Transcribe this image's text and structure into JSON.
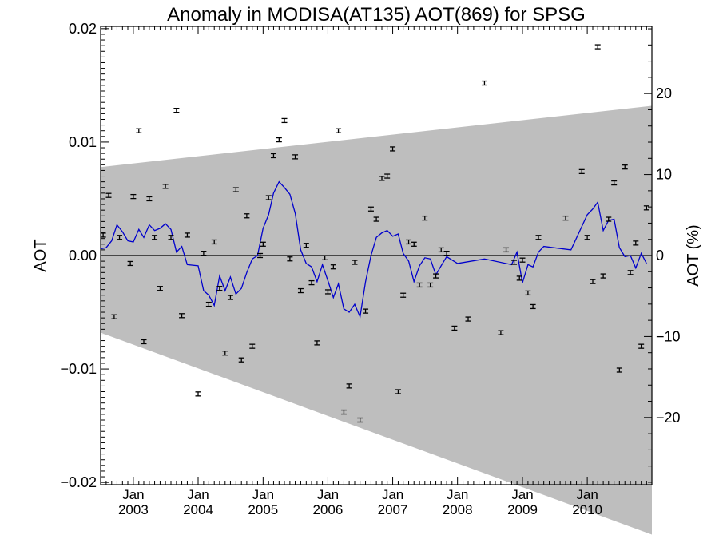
{
  "chart_data": {
    "type": "scatter",
    "title": "Anomaly in MODISA(AT135) AOT(869) for SPSG",
    "ylabel": "AOT",
    "y2label": "AOT (%)",
    "xlabel": "",
    "xlim": [
      "2002-07-01",
      "2010-12-31"
    ],
    "ylim": [
      -0.0202,
      0.0202
    ],
    "y2lim": [
      -28.3,
      28.3
    ],
    "y_ticks": [
      -0.02,
      -0.01,
      0.0,
      0.01,
      0.02
    ],
    "y_tick_labels": [
      "−0.02",
      "−0.01",
      "0.00",
      "0.01",
      "0.02"
    ],
    "y2_ticks": [
      -20,
      -10,
      0,
      10,
      20
    ],
    "y2_tick_labels": [
      "−20",
      "−10",
      "0",
      "10",
      "20"
    ],
    "x_ticks": [
      {
        "date": "2003-01-01",
        "month": "Jan",
        "year": "2003"
      },
      {
        "date": "2004-01-01",
        "month": "Jan",
        "year": "2004"
      },
      {
        "date": "2005-01-01",
        "month": "Jan",
        "year": "2005"
      },
      {
        "date": "2006-01-01",
        "month": "Jan",
        "year": "2006"
      },
      {
        "date": "2007-01-01",
        "month": "Jan",
        "year": "2007"
      },
      {
        "date": "2008-01-01",
        "month": "Jan",
        "year": "2008"
      },
      {
        "date": "2009-01-01",
        "month": "Jan",
        "year": "2009"
      },
      {
        "date": "2010-01-01",
        "month": "Jan",
        "year": "2010"
      }
    ],
    "band": {
      "upper": [
        [
          "2002-07-01",
          0.0078
        ],
        [
          "2010-12-31",
          0.0132
        ]
      ],
      "lower": [
        [
          "2002-07-01",
          -0.0068
        ],
        [
          "2010-12-31",
          -0.0246
        ]
      ],
      "color": "#bebebe"
    },
    "zero_line": true,
    "grid": false,
    "legend": "none",
    "series": [
      {
        "kind": "points",
        "marker": "error-bar",
        "color": "#000000",
        "points": [
          [
            "2002-07-15",
            0.0018
          ],
          [
            "2002-08-15",
            0.0053
          ],
          [
            "2002-09-15",
            -0.0054
          ],
          [
            "2002-10-15",
            0.0016
          ],
          [
            "2002-12-15",
            -0.0007
          ],
          [
            "2003-01-01",
            0.0052
          ],
          [
            "2003-02-01",
            0.011
          ],
          [
            "2003-03-01",
            -0.0076
          ],
          [
            "2003-04-01",
            0.005
          ],
          [
            "2003-05-01",
            0.0016
          ],
          [
            "2003-06-01",
            -0.0029
          ],
          [
            "2003-07-01",
            0.0061
          ],
          [
            "2003-08-01",
            0.0016
          ],
          [
            "2003-09-01",
            0.0128
          ],
          [
            "2003-10-01",
            -0.0053
          ],
          [
            "2003-11-01",
            0.0018
          ],
          [
            "2004-01-01",
            -0.0122
          ],
          [
            "2004-02-01",
            0.0002
          ],
          [
            "2004-03-01",
            -0.0043
          ],
          [
            "2004-04-01",
            0.0012
          ],
          [
            "2004-05-01",
            -0.0029
          ],
          [
            "2004-06-01",
            -0.0086
          ],
          [
            "2004-07-01",
            -0.0037
          ],
          [
            "2004-08-01",
            0.0058
          ],
          [
            "2004-09-01",
            -0.0092
          ],
          [
            "2004-10-01",
            0.0035
          ],
          [
            "2004-11-01",
            -0.008
          ],
          [
            "2004-12-15",
            0.0
          ],
          [
            "2005-01-01",
            0.001
          ],
          [
            "2005-02-01",
            0.0051
          ],
          [
            "2005-03-01",
            0.0088
          ],
          [
            "2005-04-01",
            0.0102
          ],
          [
            "2005-05-01",
            0.0119
          ],
          [
            "2005-06-01",
            -0.0003
          ],
          [
            "2005-07-01",
            0.0087
          ],
          [
            "2005-08-01",
            -0.0031
          ],
          [
            "2005-09-01",
            0.0009
          ],
          [
            "2005-10-01",
            -0.0024
          ],
          [
            "2005-11-01",
            -0.0077
          ],
          [
            "2005-12-15",
            -0.0002
          ],
          [
            "2006-01-01",
            -0.0032
          ],
          [
            "2006-02-01",
            -0.001
          ],
          [
            "2006-03-01",
            0.011
          ],
          [
            "2006-04-01",
            -0.0138
          ],
          [
            "2006-05-01",
            -0.0115
          ],
          [
            "2006-06-01",
            -0.0006
          ],
          [
            "2006-07-01",
            -0.0145
          ],
          [
            "2006-08-01",
            -0.0049
          ],
          [
            "2006-09-01",
            0.0041
          ],
          [
            "2006-10-01",
            0.0032
          ],
          [
            "2006-11-01",
            0.0068
          ],
          [
            "2006-12-01",
            0.007
          ],
          [
            "2007-01-01",
            0.0094
          ],
          [
            "2007-02-01",
            -0.012
          ],
          [
            "2007-03-01",
            -0.0035
          ],
          [
            "2007-04-01",
            0.0012
          ],
          [
            "2007-05-01",
            0.001
          ],
          [
            "2007-06-01",
            -0.0026
          ],
          [
            "2007-07-01",
            0.0033
          ],
          [
            "2007-08-01",
            -0.0026
          ],
          [
            "2007-09-01",
            -0.0018
          ],
          [
            "2007-10-01",
            0.0005
          ],
          [
            "2007-11-01",
            0.0002
          ],
          [
            "2007-12-15",
            -0.0064
          ],
          [
            "2008-03-01",
            -0.0056
          ],
          [
            "2008-06-01",
            0.0152
          ],
          [
            "2008-09-01",
            -0.0068
          ],
          [
            "2008-10-01",
            0.0005
          ],
          [
            "2008-11-15",
            -0.0006
          ],
          [
            "2008-12-15",
            -0.002
          ],
          [
            "2009-01-01",
            -0.0004
          ],
          [
            "2009-02-01",
            -0.0033
          ],
          [
            "2009-03-01",
            -0.0045
          ],
          [
            "2009-04-01",
            0.0016
          ],
          [
            "2009-09-01",
            0.0033
          ],
          [
            "2009-12-01",
            0.0074
          ],
          [
            "2010-01-01",
            0.0016
          ],
          [
            "2010-02-01",
            -0.0023
          ],
          [
            "2010-03-01",
            0.0184
          ],
          [
            "2010-04-01",
            -0.0018
          ],
          [
            "2010-05-01",
            0.0032
          ],
          [
            "2010-06-01",
            0.0064
          ],
          [
            "2010-07-01",
            -0.0101
          ],
          [
            "2010-08-01",
            0.0078
          ],
          [
            "2010-09-01",
            -0.0015
          ],
          [
            "2010-10-01",
            0.0011
          ],
          [
            "2010-11-01",
            -0.008
          ],
          [
            "2010-12-01",
            0.0042
          ]
        ]
      },
      {
        "kind": "line",
        "color": "#0000cc",
        "points": [
          [
            "2002-07-01",
            0.0006
          ],
          [
            "2002-08-01",
            0.0007
          ],
          [
            "2002-09-01",
            0.0013
          ],
          [
            "2002-10-01",
            0.0027
          ],
          [
            "2002-11-01",
            0.0021
          ],
          [
            "2002-12-01",
            0.0013
          ],
          [
            "2003-01-01",
            0.0012
          ],
          [
            "2003-02-01",
            0.0023
          ],
          [
            "2003-03-01",
            0.0016
          ],
          [
            "2003-04-01",
            0.0027
          ],
          [
            "2003-05-01",
            0.0022
          ],
          [
            "2003-06-01",
            0.0024
          ],
          [
            "2003-07-01",
            0.0028
          ],
          [
            "2003-08-01",
            0.0023
          ],
          [
            "2003-09-01",
            0.0003
          ],
          [
            "2003-10-01",
            0.0008
          ],
          [
            "2003-11-01",
            -0.0008
          ],
          [
            "2004-01-01",
            -0.0009
          ],
          [
            "2004-02-01",
            -0.0031
          ],
          [
            "2004-03-01",
            -0.0035
          ],
          [
            "2004-04-01",
            -0.0044
          ],
          [
            "2004-05-01",
            -0.0018
          ],
          [
            "2004-06-01",
            -0.0031
          ],
          [
            "2004-07-01",
            -0.0019
          ],
          [
            "2004-08-01",
            -0.0034
          ],
          [
            "2004-09-01",
            -0.0029
          ],
          [
            "2004-10-01",
            -0.0015
          ],
          [
            "2004-11-01",
            -0.0003
          ],
          [
            "2004-12-01",
            0.0
          ],
          [
            "2005-01-01",
            0.0024
          ],
          [
            "2005-02-01",
            0.0036
          ],
          [
            "2005-03-01",
            0.0055
          ],
          [
            "2005-04-01",
            0.0065
          ],
          [
            "2005-05-01",
            0.006
          ],
          [
            "2005-06-01",
            0.0054
          ],
          [
            "2005-07-01",
            0.0037
          ],
          [
            "2005-08-01",
            0.0005
          ],
          [
            "2005-09-01",
            -0.0007
          ],
          [
            "2005-10-01",
            -0.001
          ],
          [
            "2005-11-01",
            -0.0023
          ],
          [
            "2005-12-01",
            -0.0008
          ],
          [
            "2006-01-01",
            -0.0022
          ],
          [
            "2006-02-01",
            -0.0037
          ],
          [
            "2006-03-01",
            -0.0025
          ],
          [
            "2006-04-01",
            -0.0047
          ],
          [
            "2006-05-01",
            -0.005
          ],
          [
            "2006-06-01",
            -0.0043
          ],
          [
            "2006-07-01",
            -0.0054
          ],
          [
            "2006-08-01",
            -0.0023
          ],
          [
            "2006-09-01",
            0.0
          ],
          [
            "2006-10-01",
            0.0016
          ],
          [
            "2006-11-01",
            0.002
          ],
          [
            "2006-12-01",
            0.0022
          ],
          [
            "2007-01-01",
            0.0017
          ],
          [
            "2007-02-01",
            0.0019
          ],
          [
            "2007-03-01",
            0.0002
          ],
          [
            "2007-04-01",
            -0.0005
          ],
          [
            "2007-05-01",
            -0.0023
          ],
          [
            "2007-06-01",
            -0.0009
          ],
          [
            "2007-07-01",
            -0.0002
          ],
          [
            "2007-08-01",
            -0.0003
          ],
          [
            "2007-09-01",
            -0.0017
          ],
          [
            "2007-10-01",
            -0.0009
          ],
          [
            "2007-11-01",
            -0.0001
          ],
          [
            "2008-01-01",
            -0.0007
          ],
          [
            "2008-06-01",
            -0.0003
          ],
          [
            "2008-11-01",
            -0.0008
          ],
          [
            "2008-12-01",
            0.0003
          ],
          [
            "2009-01-01",
            -0.0024
          ],
          [
            "2009-02-01",
            -0.0008
          ],
          [
            "2009-03-01",
            -0.001
          ],
          [
            "2009-04-01",
            0.0003
          ],
          [
            "2009-05-01",
            0.0008
          ],
          [
            "2009-10-01",
            0.0005
          ],
          [
            "2010-01-01",
            0.0036
          ],
          [
            "2010-02-01",
            0.0041
          ],
          [
            "2010-03-01",
            0.0047
          ],
          [
            "2010-04-01",
            0.0022
          ],
          [
            "2010-05-01",
            0.0031
          ],
          [
            "2010-06-01",
            0.0032
          ],
          [
            "2010-07-01",
            0.0007
          ],
          [
            "2010-08-01",
            -0.0001
          ],
          [
            "2010-09-01",
            0.0
          ],
          [
            "2010-10-01",
            -0.0011
          ],
          [
            "2010-11-01",
            0.0002
          ],
          [
            "2010-12-01",
            -0.0007
          ]
        ]
      }
    ]
  }
}
